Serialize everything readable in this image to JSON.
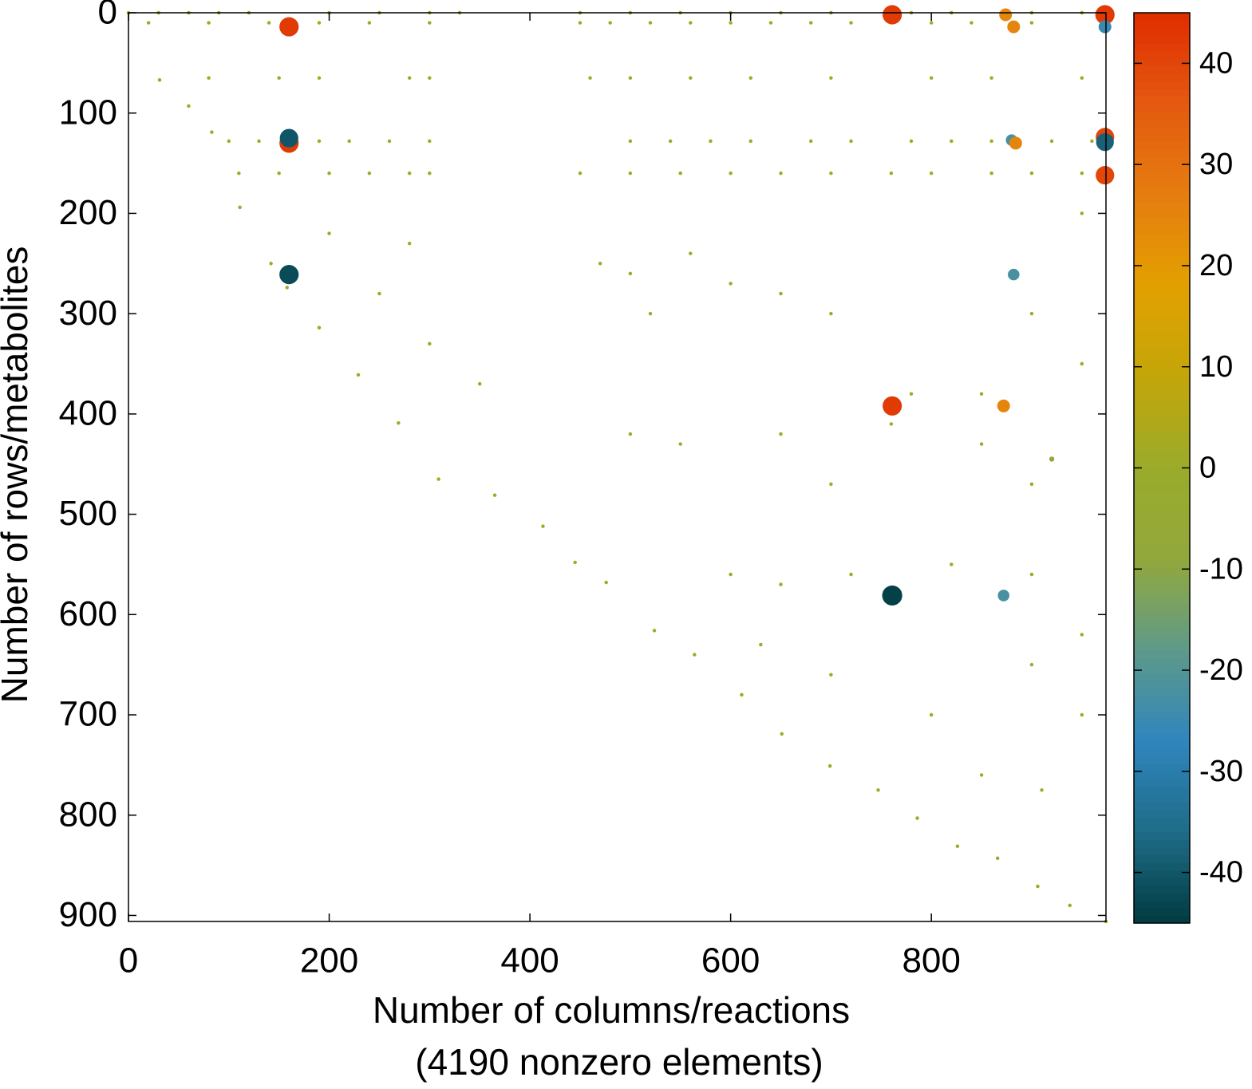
{
  "chart_data": {
    "type": "scatter",
    "xlabel": [
      "Number of columns/reactions",
      "(4190 nonzero elements)"
    ],
    "ylabel": "Number of rows/metabolites",
    "xlim": [
      0,
      974
    ],
    "ylim": [
      0,
      906
    ],
    "y_inverted": true,
    "xticks": [
      0,
      200,
      400,
      600,
      800
    ],
    "yticks": [
      0,
      100,
      200,
      300,
      400,
      500,
      600,
      700,
      800,
      900
    ],
    "clim": [
      -45,
      45
    ],
    "cticks": [
      -40,
      -30,
      -20,
      -10,
      0,
      10,
      20,
      30,
      40
    ],
    "colormap": [
      "#003b40",
      "#1f6c88",
      "#2f85bd",
      "#5e9a8a",
      "#92a83c",
      "#9aab2a",
      "#c3a60a",
      "#e3a000",
      "#e57d10",
      "#e45a10",
      "#e02c00"
    ],
    "x": [
      0,
      31,
      60,
      83,
      111,
      142,
      158,
      190,
      229,
      269,
      309,
      365,
      413,
      445,
      476,
      524,
      564,
      611,
      651,
      699,
      747,
      786,
      826,
      866,
      906,
      938,
      974,
      160,
      160,
      160,
      761,
      973,
      973,
      874,
      882,
      880,
      884,
      973,
      973,
      973,
      160,
      882,
      761,
      872,
      761,
      872,
      920,
      30,
      60,
      90,
      120,
      200,
      250,
      300,
      330,
      450,
      500,
      550,
      600,
      650,
      700,
      780,
      820,
      900,
      950,
      20,
      80,
      140,
      190,
      240,
      300,
      450,
      480,
      520,
      560,
      600,
      640,
      680,
      720,
      800,
      840,
      900,
      80,
      150,
      190,
      280,
      300,
      460,
      500,
      560,
      620,
      700,
      800,
      860,
      950,
      100,
      130,
      190,
      220,
      260,
      300,
      500,
      540,
      580,
      620,
      680,
      720,
      780,
      820,
      860,
      920,
      960,
      110,
      150,
      200,
      240,
      280,
      300,
      450,
      500,
      550,
      600,
      650,
      700,
      760,
      800,
      860,
      900,
      950,
      200,
      250,
      280,
      300,
      350,
      470,
      500,
      520,
      560,
      600,
      650,
      700,
      780,
      850,
      900,
      950,
      950,
      500,
      550,
      650,
      700,
      760,
      850,
      900,
      600,
      650,
      720,
      820,
      900,
      950,
      630,
      700,
      800,
      900,
      950,
      910,
      850
    ],
    "y": [
      0,
      67,
      93,
      119,
      194,
      250,
      274,
      314,
      361,
      409,
      465,
      481,
      512,
      548,
      568,
      616,
      640,
      680,
      719,
      751,
      775,
      803,
      831,
      843,
      871,
      890,
      906,
      14,
      130,
      125,
      2,
      2,
      14,
      2,
      14,
      127,
      130,
      124,
      129,
      162,
      261,
      261,
      392,
      392,
      581,
      581,
      445,
      0,
      0,
      0,
      0,
      0,
      0,
      0,
      0,
      0,
      0,
      0,
      0,
      0,
      0,
      0,
      0,
      0,
      0,
      10,
      10,
      10,
      10,
      10,
      10,
      10,
      10,
      10,
      10,
      10,
      10,
      10,
      10,
      10,
      10,
      10,
      65,
      65,
      65,
      65,
      65,
      65,
      65,
      65,
      65,
      65,
      65,
      65,
      65,
      128,
      128,
      128,
      128,
      128,
      128,
      128,
      128,
      128,
      128,
      128,
      128,
      128,
      128,
      128,
      128,
      128,
      160,
      160,
      160,
      160,
      160,
      160,
      160,
      160,
      160,
      160,
      160,
      160,
      160,
      160,
      160,
      160,
      160,
      220,
      280,
      230,
      330,
      370,
      250,
      260,
      300,
      240,
      270,
      280,
      300,
      380,
      380,
      300,
      350,
      200,
      420,
      430,
      420,
      470,
      410,
      430,
      470,
      560,
      570,
      560,
      550,
      560,
      620,
      630,
      660,
      700,
      650,
      700,
      775,
      760
    ],
    "values": [
      1,
      1,
      1,
      1,
      1,
      1,
      1,
      1,
      1,
      1,
      1,
      1,
      1,
      1,
      1,
      1,
      1,
      1,
      1,
      1,
      1,
      1,
      1,
      1,
      1,
      1,
      1,
      42,
      42,
      -40,
      42,
      42,
      -25,
      25,
      25,
      -22,
      25,
      40,
      -38,
      40,
      -42,
      -22,
      42,
      25,
      -44,
      -22,
      -5,
      1,
      1,
      1,
      1,
      1,
      1,
      1,
      1,
      1,
      1,
      1,
      1,
      1,
      1,
      1,
      1,
      1,
      1,
      1,
      1,
      1,
      1,
      1,
      1,
      1,
      1,
      1,
      1,
      1,
      1,
      1,
      1,
      1,
      1,
      1,
      1,
      1,
      1,
      1,
      1,
      1,
      1,
      1,
      1,
      1,
      1,
      1,
      1,
      1,
      1,
      1,
      1,
      1,
      1,
      1,
      1,
      1,
      1,
      1,
      1,
      1,
      1,
      1,
      1,
      1,
      1,
      1,
      1,
      1,
      1,
      1,
      1,
      1,
      1,
      1,
      1,
      1,
      1,
      1,
      1,
      1,
      1,
      1,
      1,
      1,
      1,
      1,
      1,
      1,
      1,
      1,
      1,
      1,
      1,
      1,
      1,
      1,
      1,
      1,
      1,
      1,
      1,
      1,
      1,
      1,
      1,
      1,
      1,
      1,
      1,
      1,
      1,
      1,
      1,
      1,
      1,
      1,
      1,
      1
    ]
  }
}
